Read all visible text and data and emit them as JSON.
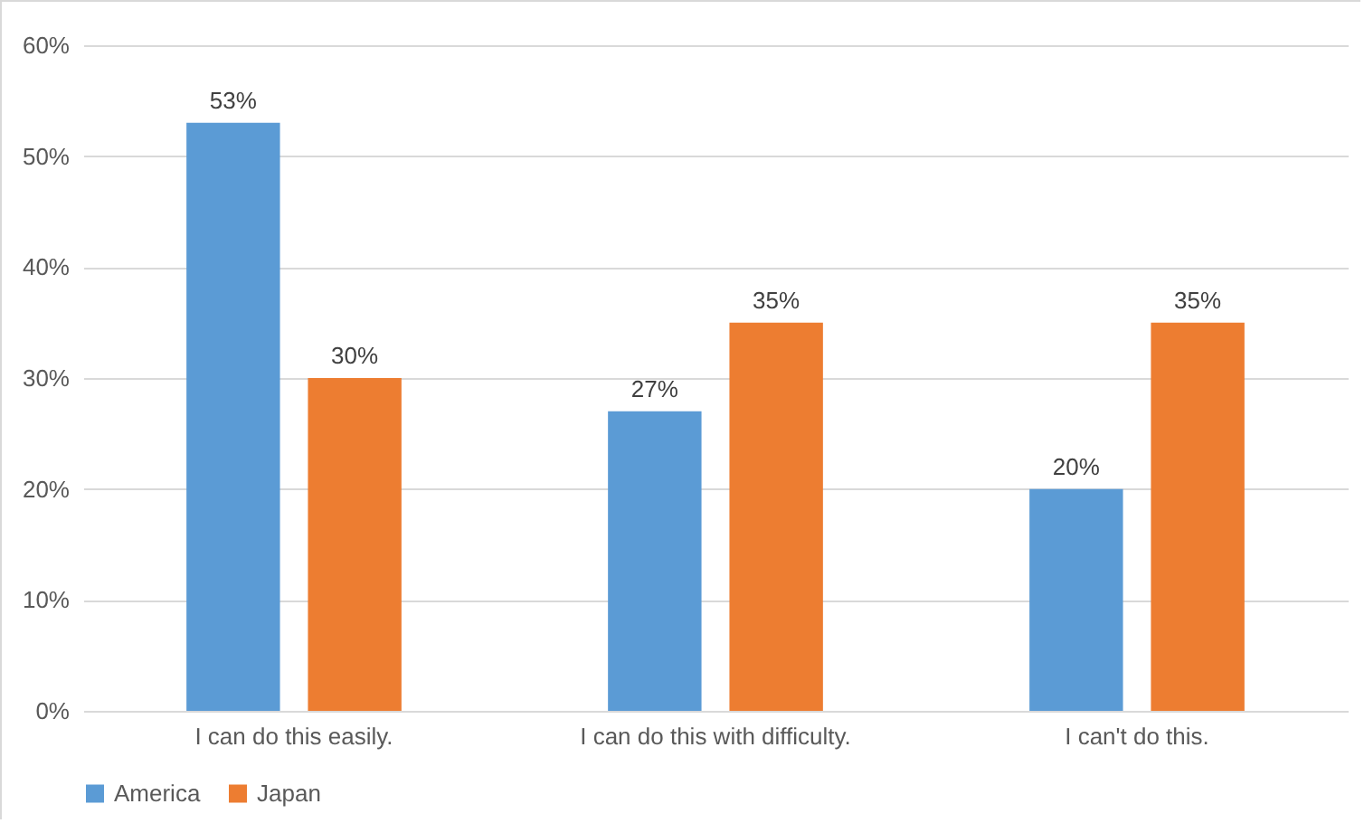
{
  "chart_data": {
    "type": "bar",
    "categories": [
      "I can do this easily.",
      "I can do this with difficulty.",
      "I can't do this."
    ],
    "series": [
      {
        "name": "America",
        "color": "#5b9bd5",
        "values": [
          53,
          27,
          20
        ],
        "value_labels": [
          "53%",
          "27%",
          "20%"
        ]
      },
      {
        "name": "Japan",
        "color": "#ed7d31",
        "values": [
          30,
          35,
          35
        ],
        "value_labels": [
          "30%",
          "35%",
          "35%"
        ]
      }
    ],
    "ylim": [
      0,
      60
    ],
    "yticks": [
      {
        "value": 0,
        "label": "0%"
      },
      {
        "value": 10,
        "label": "10%"
      },
      {
        "value": 20,
        "label": "20%"
      },
      {
        "value": 30,
        "label": "30%"
      },
      {
        "value": 40,
        "label": "40%"
      },
      {
        "value": 50,
        "label": "50%"
      },
      {
        "value": 60,
        "label": "60%"
      }
    ],
    "grid": "y",
    "legend": "bottom"
  }
}
